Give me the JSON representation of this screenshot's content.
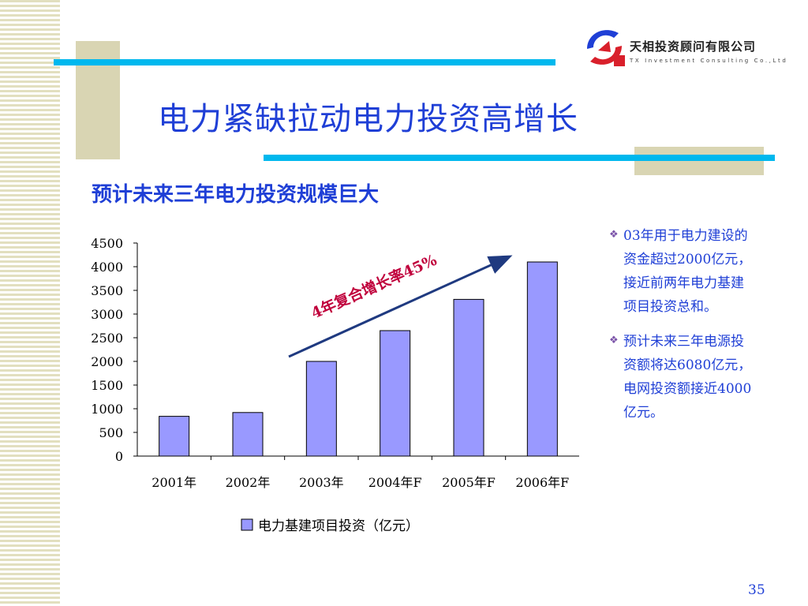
{
  "header": {
    "title": "电力紧缺拉动电力投资高增长",
    "subtitle": "预计未来三年电力投资规模巨大"
  },
  "logo": {
    "name_cn": "天相投资顾问有限公司",
    "name_en": "TX Investment Consulting Co.,Ltd"
  },
  "notes": [
    {
      "text": "03年用于电力建设的资金超过2000亿元，接近前两年电力基建项目投资总和。"
    },
    {
      "text": "预计未来三年电源投资额将达6080亿元，电网投资额接近4000亿元。"
    }
  ],
  "page_number": "35",
  "colors": {
    "bar": "#9999ff",
    "title": "#1f3fd6",
    "annotation": "#c0003c",
    "arrow": "#1f3a80",
    "accent_line": "#00b8ee"
  },
  "chart_data": {
    "type": "bar",
    "categories": [
      "2001年",
      "2002年",
      "2003年",
      "2004年F",
      "2005年F",
      "2006年F"
    ],
    "series": [
      {
        "name": "电力基建项目投资（亿元）",
        "values": [
          840,
          920,
          2000,
          2650,
          3310,
          4100
        ]
      }
    ],
    "ylim": [
      0,
      4500
    ],
    "yticks": [
      "0",
      "500",
      "1000",
      "1500",
      "2000",
      "2500",
      "3000",
      "3500",
      "4000",
      "4500"
    ],
    "legend_position": "bottom",
    "annotation": "4年复合增长率45%",
    "grid": false
  }
}
